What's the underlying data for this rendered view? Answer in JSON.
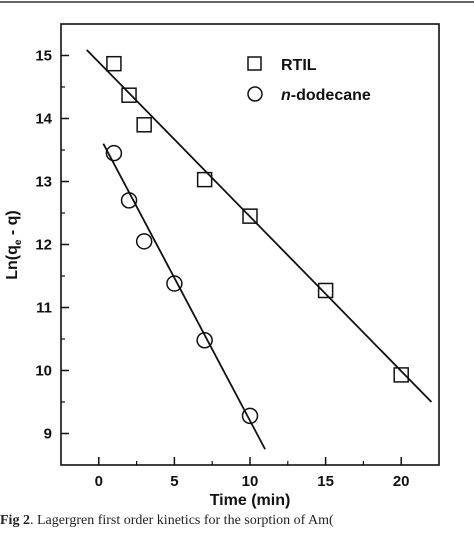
{
  "chart_data": {
    "type": "scatter",
    "xlabel": "Time (min)",
    "ylabel_prefix": "Ln(q",
    "ylabel_sub": "e",
    "ylabel_suffix": " - q)",
    "xlim": [
      -2.5,
      22.5
    ],
    "ylim": [
      8.5,
      15.5
    ],
    "xticks": [
      "0",
      "5",
      "10",
      "15",
      "20"
    ],
    "yticks": [
      "9",
      "10",
      "11",
      "12",
      "13",
      "14",
      "15"
    ],
    "grid": false,
    "legend_position": "top-right",
    "series": [
      {
        "name": "RTIL",
        "marker": "square",
        "points": [
          {
            "x": 1,
            "y": 14.87
          },
          {
            "x": 2,
            "y": 14.37
          },
          {
            "x": 3,
            "y": 13.9
          },
          {
            "x": 7,
            "y": 13.03
          },
          {
            "x": 10,
            "y": 12.45
          },
          {
            "x": 15,
            "y": 11.27
          },
          {
            "x": 20,
            "y": 9.93
          }
        ],
        "fit_line": {
          "x": [
            -0.8,
            22.0
          ],
          "y": [
            15.09,
            9.5
          ]
        }
      },
      {
        "name_prefix": "n",
        "name": "-dodecane",
        "marker": "circle",
        "points": [
          {
            "x": 1,
            "y": 13.45
          },
          {
            "x": 2,
            "y": 12.7
          },
          {
            "x": 3,
            "y": 12.05
          },
          {
            "x": 5,
            "y": 11.38
          },
          {
            "x": 7,
            "y": 10.48
          },
          {
            "x": 10,
            "y": 9.28
          }
        ],
        "fit_line": {
          "x": [
            0.3,
            11.0
          ],
          "y": [
            13.6,
            8.75
          ]
        }
      }
    ]
  },
  "caption": {
    "label": "Fig 2",
    "text": "Lagergren first order kinetics for the sorption of Am("
  }
}
